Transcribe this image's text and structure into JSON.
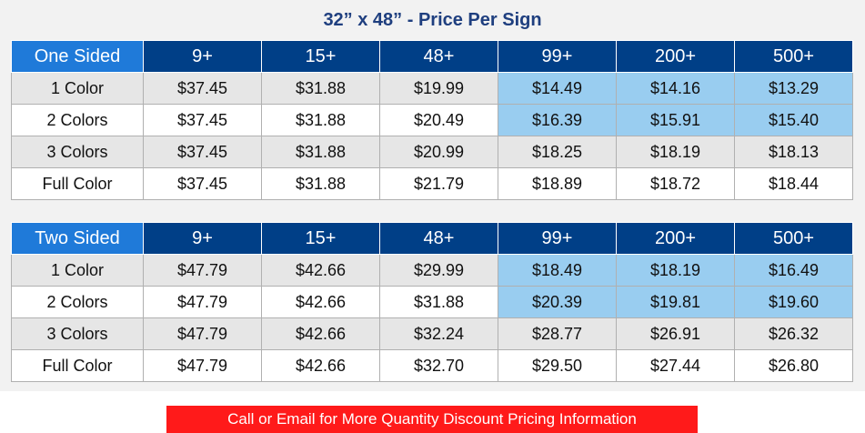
{
  "title": "32” x 48” - Price Per Sign",
  "tables": [
    {
      "label": "One Sided",
      "quantities": [
        "9+",
        "15+",
        "48+",
        "99+",
        "200+",
        "500+"
      ],
      "rows": [
        {
          "label": "1 Color",
          "prices": [
            "$37.45",
            "$31.88",
            "$19.99",
            "$14.49",
            "$14.16",
            "$13.29"
          ],
          "highlight_from": 3
        },
        {
          "label": "2 Colors",
          "prices": [
            "$37.45",
            "$31.88",
            "$20.49",
            "$16.39",
            "$15.91",
            "$15.40"
          ],
          "highlight_from": 3
        },
        {
          "label": "3 Colors",
          "prices": [
            "$37.45",
            "$31.88",
            "$20.99",
            "$18.25",
            "$18.19",
            "$18.13"
          ],
          "highlight_from": null
        },
        {
          "label": "Full Color",
          "prices": [
            "$37.45",
            "$31.88",
            "$21.79",
            "$18.89",
            "$18.72",
            "$18.44"
          ],
          "highlight_from": null
        }
      ]
    },
    {
      "label": "Two Sided",
      "quantities": [
        "9+",
        "15+",
        "48+",
        "99+",
        "200+",
        "500+"
      ],
      "rows": [
        {
          "label": "1 Color",
          "prices": [
            "$47.79",
            "$42.66",
            "$29.99",
            "$18.49",
            "$18.19",
            "$16.49"
          ],
          "highlight_from": 3
        },
        {
          "label": "2 Colors",
          "prices": [
            "$47.79",
            "$42.66",
            "$31.88",
            "$20.39",
            "$19.81",
            "$19.60"
          ],
          "highlight_from": 3
        },
        {
          "label": "3 Colors",
          "prices": [
            "$47.79",
            "$42.66",
            "$32.24",
            "$28.77",
            "$26.91",
            "$26.32"
          ],
          "highlight_from": null
        },
        {
          "label": "Full Color",
          "prices": [
            "$47.79",
            "$42.66",
            "$32.70",
            "$29.50",
            "$27.44",
            "$26.80"
          ],
          "highlight_from": null
        }
      ]
    }
  ],
  "cta": {
    "label": "Call or Email for More Quantity Discount Pricing Information"
  },
  "colors": {
    "header": "#003f87",
    "corner": "#1f7ad9",
    "highlight": "#99cdf0",
    "cta": "#ff1a1a",
    "title": "#1f3f7f"
  }
}
